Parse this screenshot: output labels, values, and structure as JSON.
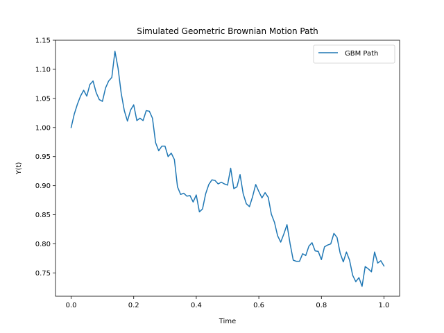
{
  "chart_data": {
    "type": "line",
    "title": "Simulated Geometric Brownian Motion Path",
    "xlabel": "Time",
    "ylabel": "Y(t)",
    "xlim": [
      -0.05,
      1.05
    ],
    "ylim": [
      0.71,
      1.15
    ],
    "xticks": [
      0.0,
      0.2,
      0.4,
      0.6,
      0.8,
      1.0
    ],
    "xtick_labels": [
      "0.0",
      "0.2",
      "0.4",
      "0.6",
      "0.8",
      "1.0"
    ],
    "yticks": [
      0.75,
      0.8,
      0.85,
      0.9,
      0.95,
      1.0,
      1.05,
      1.1,
      1.15
    ],
    "ytick_labels": [
      "0.75",
      "0.80",
      "0.85",
      "0.90",
      "0.95",
      "1.00",
      "1.05",
      "1.10",
      "1.15"
    ],
    "grid": false,
    "legend_position": "top-right",
    "series": [
      {
        "name": "GBM Path",
        "color": "#1f77b4",
        "x": [
          0.0,
          0.01,
          0.02,
          0.03,
          0.04,
          0.05,
          0.06,
          0.07,
          0.08,
          0.09,
          0.1,
          0.11,
          0.12,
          0.13,
          0.14,
          0.15,
          0.16,
          0.17,
          0.18,
          0.19,
          0.2,
          0.21,
          0.22,
          0.23,
          0.24,
          0.25,
          0.26,
          0.27,
          0.28,
          0.29,
          0.3,
          0.31,
          0.32,
          0.33,
          0.34,
          0.35,
          0.36,
          0.37,
          0.38,
          0.39,
          0.4,
          0.41,
          0.42,
          0.43,
          0.44,
          0.45,
          0.46,
          0.47,
          0.48,
          0.49,
          0.5,
          0.51,
          0.52,
          0.53,
          0.54,
          0.55,
          0.56,
          0.57,
          0.58,
          0.59,
          0.6,
          0.61,
          0.62,
          0.63,
          0.64,
          0.65,
          0.66,
          0.67,
          0.68,
          0.69,
          0.7,
          0.71,
          0.72,
          0.73,
          0.74,
          0.75,
          0.76,
          0.77,
          0.78,
          0.79,
          0.8,
          0.81,
          0.82,
          0.83,
          0.84,
          0.85,
          0.86,
          0.87,
          0.88,
          0.89,
          0.9,
          0.91,
          0.92,
          0.93,
          0.94,
          0.95,
          0.96,
          0.97,
          0.98,
          0.99,
          1.0
        ],
        "y": [
          1.0,
          1.023,
          1.04,
          1.054,
          1.064,
          1.054,
          1.074,
          1.08,
          1.06,
          1.048,
          1.045,
          1.068,
          1.08,
          1.086,
          1.131,
          1.102,
          1.059,
          1.029,
          1.011,
          1.03,
          1.039,
          1.012,
          1.016,
          1.012,
          1.029,
          1.028,
          1.016,
          0.974,
          0.96,
          0.968,
          0.968,
          0.95,
          0.956,
          0.945,
          0.898,
          0.885,
          0.887,
          0.882,
          0.883,
          0.872,
          0.884,
          0.855,
          0.86,
          0.886,
          0.902,
          0.91,
          0.909,
          0.903,
          0.906,
          0.903,
          0.901,
          0.93,
          0.895,
          0.898,
          0.919,
          0.886,
          0.869,
          0.864,
          0.881,
          0.902,
          0.89,
          0.879,
          0.888,
          0.88,
          0.851,
          0.837,
          0.814,
          0.803,
          0.817,
          0.833,
          0.8,
          0.772,
          0.77,
          0.77,
          0.783,
          0.78,
          0.796,
          0.802,
          0.788,
          0.787,
          0.773,
          0.795,
          0.798,
          0.8,
          0.818,
          0.811,
          0.784,
          0.769,
          0.786,
          0.772,
          0.746,
          0.735,
          0.742,
          0.727,
          0.761,
          0.757,
          0.752,
          0.786,
          0.767,
          0.771,
          0.762
        ]
      }
    ]
  }
}
